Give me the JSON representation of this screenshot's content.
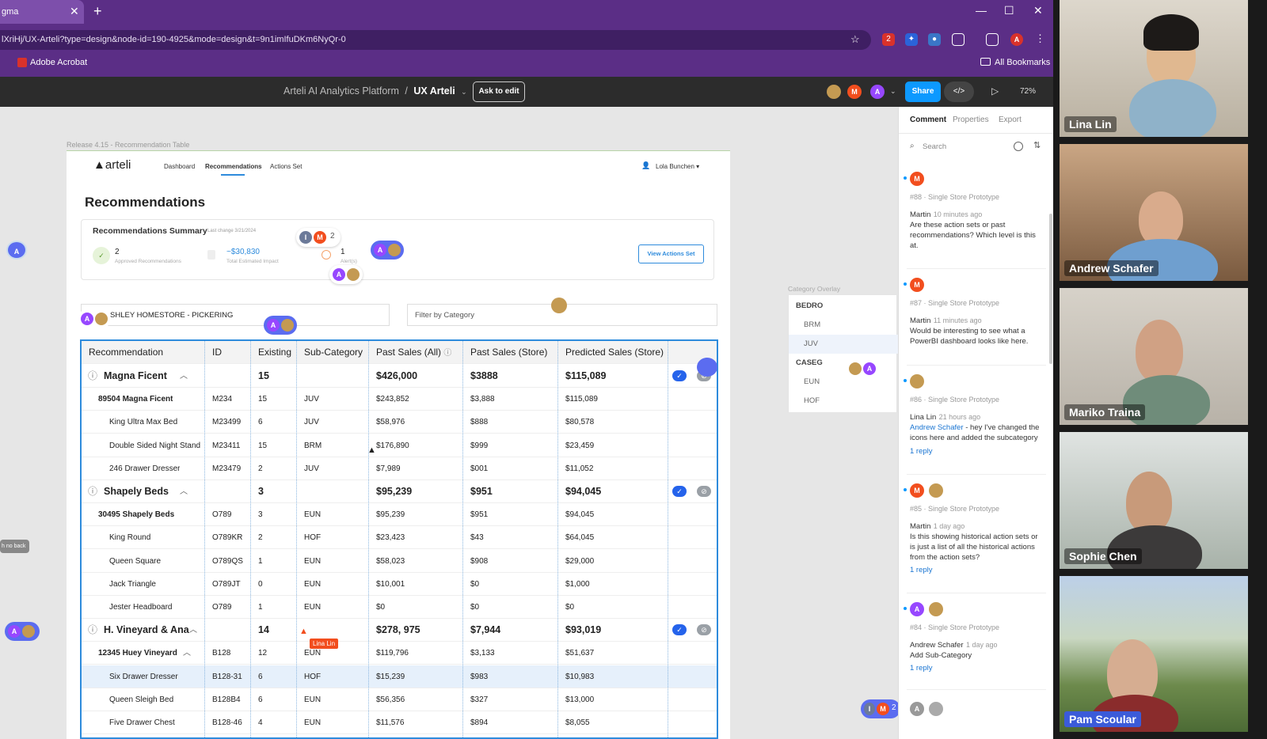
{
  "browser": {
    "tab_title": "gma",
    "url": "lXriHj/UX-Arteli?type=design&node-id=190-4925&mode=design&t=9n1imIfuDKm6NyQr-0",
    "bookmark_1": "Adobe Acrobat",
    "bookmark_all": "All Bookmarks",
    "ext_badge": "2"
  },
  "figma": {
    "project": "Arteli AI Analytics Platform",
    "separator": "/",
    "file": "UX Arteli",
    "ask_label": "Ask to edit",
    "share_label": "Share",
    "zoom": "72%",
    "avatar_m": "M",
    "avatar_a": "A"
  },
  "frame": {
    "label": "Release 4.15 - Recommendation Table",
    "logo": "arteli",
    "nav": [
      "Dashboard",
      "Recommendations",
      "Actions Set"
    ],
    "user": "Lola Bunchen",
    "title": "Recommendations",
    "summary": {
      "title": "Recommendations Summary",
      "last_change": "Last change 3/21/2024",
      "approved_value": "2",
      "approved_label": "Approved Recommendations",
      "impact_value": "~$30,830",
      "impact_label": "Total Estimated Impact",
      "alerts_value": "1",
      "alerts_label": "Alert(s)",
      "view_btn": "View Actions Set"
    },
    "store_filter": "SHLEY HOMESTORE - PICKERING",
    "category_filter": "Filter by Category"
  },
  "cursor_counts": {
    "top": "2",
    "bottom": "2",
    "top_i": "I",
    "top_m": "M",
    "bottom_i": "I",
    "bottom_m": "M"
  },
  "cursor_label": "Lina Lin",
  "side_tag": "h no back",
  "table": {
    "headers": [
      "Recommendation",
      "ID",
      "Existing",
      "Sub-Category",
      "Past Sales (All)",
      "Past Sales (Store)",
      "Predicted Sales (Store)"
    ],
    "rows": [
      {
        "kind": "group",
        "name": "Magna Ficent",
        "id": "",
        "existing": "15",
        "sub": "",
        "all": "$426,000",
        "store": "$3888",
        "pred": "$115,089"
      },
      {
        "kind": "sub",
        "name": "89504 Magna Ficent",
        "id": "M234",
        "existing": "15",
        "sub": "JUV",
        "all": "$243,852",
        "store": "$3,888",
        "pred": "$115,089"
      },
      {
        "kind": "item",
        "name": "King Ultra Max Bed",
        "id": "M23499",
        "existing": "6",
        "sub": "JUV",
        "all": "$58,976",
        "store": "$888",
        "pred": "$80,578"
      },
      {
        "kind": "item",
        "name": "Double Sided Night Stand",
        "id": "M23411",
        "existing": "15",
        "sub": "BRM",
        "all": "$176,890",
        "store": "$999",
        "pred": "$23,459"
      },
      {
        "kind": "item",
        "name": "246 Drawer Dresser",
        "id": "M23479",
        "existing": "2",
        "sub": "JUV",
        "all": "$7,989",
        "store": "$001",
        "pred": "$11,052"
      },
      {
        "kind": "group",
        "name": "Shapely Beds",
        "id": "",
        "existing": "3",
        "sub": "",
        "all": "$95,239",
        "store": "$951",
        "pred": "$94,045"
      },
      {
        "kind": "sub",
        "name": "30495 Shapely Beds",
        "id": "O789",
        "existing": "3",
        "sub": "EUN",
        "all": "$95,239",
        "store": "$951",
        "pred": "$94,045"
      },
      {
        "kind": "item",
        "name": "King Round",
        "id": "O789KR",
        "existing": "2",
        "sub": "HOF",
        "all": "$23,423",
        "store": "$43",
        "pred": "$64,045"
      },
      {
        "kind": "item",
        "name": "Queen Square",
        "id": "O789QS",
        "existing": "1",
        "sub": "EUN",
        "all": "$58,023",
        "store": "$908",
        "pred": "$29,000"
      },
      {
        "kind": "item",
        "name": "Jack Triangle",
        "id": "O789JT",
        "existing": "0",
        "sub": "EUN",
        "all": "$10,001",
        "store": "$0",
        "pred": "$1,000"
      },
      {
        "kind": "item",
        "name": "Jester Headboard",
        "id": "O789",
        "existing": "1",
        "sub": "EUN",
        "all": "$0",
        "store": "$0",
        "pred": "$0"
      },
      {
        "kind": "group",
        "name": "H. Vineyard & Ana",
        "id": "",
        "existing": "14",
        "sub": "",
        "all": "$278, 975",
        "store": "$7,944",
        "pred": "$93,019"
      },
      {
        "kind": "sub",
        "name": "12345 Huey Vineyard",
        "id": "B128",
        "existing": "12",
        "sub": "EUN",
        "all": "$119,796",
        "store": "$3,133",
        "pred": "$51,637"
      },
      {
        "kind": "item",
        "name": "Six Drawer Dresser",
        "id": "B128-31",
        "existing": "6",
        "sub": "HOF",
        "all": "$15,239",
        "store": "$983",
        "pred": "$10,983",
        "highlight": true
      },
      {
        "kind": "item",
        "name": "Queen Sleigh Bed",
        "id": "B128B4",
        "existing": "6",
        "sub": "EUN",
        "all": "$56,356",
        "store": "$327",
        "pred": "$13,000"
      },
      {
        "kind": "item",
        "name": "Five Drawer Chest",
        "id": "B128-46",
        "existing": "4",
        "sub": "EUN",
        "all": "$11,576",
        "store": "$894",
        "pred": "$8,055"
      }
    ]
  },
  "overlay": {
    "title": "Category Overlay",
    "items": [
      {
        "label": "BEDRO",
        "head": true
      },
      {
        "label": "BRM",
        "head": false
      },
      {
        "label": "JUV",
        "head": false,
        "active": true
      },
      {
        "label": "CASEG",
        "head": true
      },
      {
        "label": "EUN",
        "head": false
      },
      {
        "label": "HOF",
        "head": false
      }
    ]
  },
  "panel": {
    "tabs": [
      "Comment",
      "Properties",
      "Export"
    ],
    "search_placeholder": "Search",
    "comments": [
      {
        "ref": "#88 · Single Store Prototype",
        "author": "Martin",
        "time": "10 minutes ago",
        "text": "Are these action sets or past recommendations? Which level is this at.",
        "reply": "",
        "avatar": "M"
      },
      {
        "ref": "#87 · Single Store Prototype",
        "author": "Martin",
        "time": "11 minutes ago",
        "text": "Would be interesting to see what a PowerBI dashboard looks like here.",
        "reply": "",
        "avatar": "M"
      },
      {
        "ref": "#86 · Single Store Prototype",
        "author": "Lina Lin",
        "time": "21 hours ago",
        "mention": "Andrew Schafer",
        "text": " - hey I've changed the icons here and added the subcategory",
        "reply": "1 reply",
        "avatar": ""
      },
      {
        "ref": "#85 · Single Store Prototype",
        "author": "Martin",
        "time": "1 day ago",
        "text": "Is this showing historical action sets or is just a list of all the historical actions from the action sets?",
        "reply": "1 reply",
        "avatar": "M"
      },
      {
        "ref": "#84 · Single Store Prototype",
        "author": "Andrew Schafer",
        "time": "1 day ago",
        "text": "Add Sub-Category",
        "reply": "1 reply",
        "avatar": "A"
      }
    ],
    "bottom_avatar": "A"
  },
  "video": [
    "Lina Lin",
    "Andrew Schafer",
    "Mariko Traina",
    "Sophie Chen",
    "Pam Scoular"
  ],
  "colors": {
    "accent": "#0d99ff",
    "chrome": "#5b2e86",
    "avatar_orange": "#f24e1e",
    "avatar_purple": "#9747ff",
    "table_border": "#2e8bdc"
  }
}
